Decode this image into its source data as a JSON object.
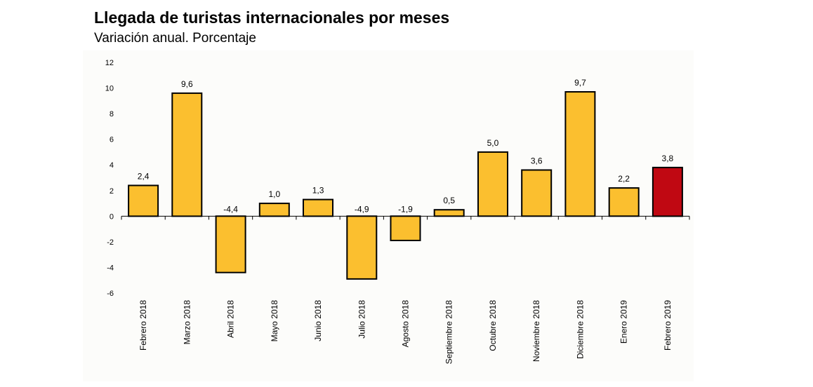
{
  "chart_data": {
    "type": "bar",
    "title": "Llegada de turistas internacionales por meses",
    "subtitle": "Variación anual. Porcentaje",
    "xlabel": "",
    "ylabel": "",
    "ylim": [
      -6,
      12
    ],
    "yticks": [
      12,
      10,
      8,
      6,
      4,
      2,
      0,
      -2,
      -4,
      -6
    ],
    "grid": false,
    "legend": "none",
    "categories": [
      "Febrero 2018",
      "Marzo 2018",
      "Abril 2018",
      "Mayo 2018",
      "Junio 2018",
      "Julio 2018",
      "Agosto 2018",
      "Septiembre 2018",
      "Octubre 2018",
      "Noviembre 2018",
      "Diciembre 2018",
      "Enero 2019",
      "Febrero 2019"
    ],
    "values": [
      2.4,
      9.6,
      -4.4,
      1.0,
      1.3,
      -4.9,
      -1.9,
      0.5,
      5.0,
      3.6,
      9.7,
      2.2,
      3.8
    ],
    "data_labels": [
      "2,4",
      "9,6",
      "-4,4",
      "1,0",
      "1,3",
      "-4,9",
      "-1,9",
      "0,5",
      "5,0",
      "3,6",
      "9,7",
      "2,2",
      "3,8"
    ],
    "colors": {
      "bar": "#fbbf2f",
      "highlight": "#c00812",
      "outline": "#000000"
    },
    "highlight_index": 12
  }
}
